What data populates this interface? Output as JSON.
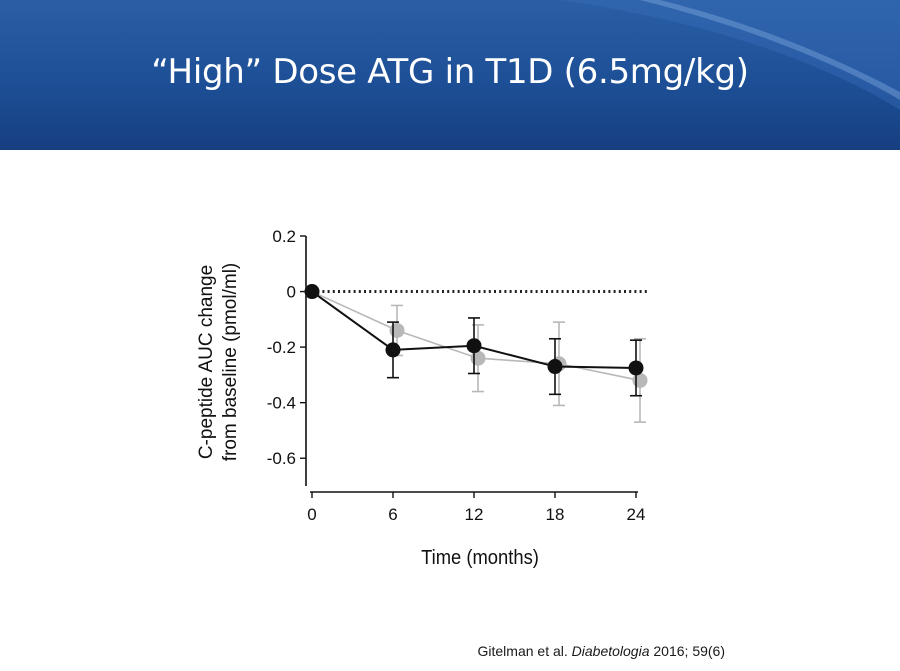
{
  "slide": {
    "title": "“High” Dose ATG in T1D (6.5mg/kg)",
    "citation": {
      "authors": "Gitelman et al.",
      "journal": "Diabetologia",
      "details": "2016; 59(6)"
    }
  },
  "colors": {
    "header": "#1d4f96",
    "series_black": "#111111",
    "series_grey": "#b8b8b8"
  },
  "chart_data": {
    "type": "line",
    "title": "",
    "xlabel": "Time (months)",
    "ylabel_line1": "C-peptide AUC change",
    "ylabel_line2": "from baseline (pmol/ml)",
    "xlim": [
      0,
      24
    ],
    "ylim": [
      -0.7,
      0.2
    ],
    "xticks": [
      0,
      6,
      12,
      18,
      24
    ],
    "xtick_labels": [
      "0",
      "6",
      "12",
      "18",
      "24"
    ],
    "yticks": [
      0.2,
      0,
      -0.2,
      -0.4,
      -0.6
    ],
    "ytick_labels": [
      "0.2",
      "0",
      "-0.2",
      "-0.4",
      "-0.6"
    ],
    "reference_line": {
      "y": 0,
      "style": "dotted"
    },
    "series": [
      {
        "name": "grey",
        "x": [
          0,
          6,
          12,
          18,
          24
        ],
        "values": [
          0,
          -0.14,
          -0.24,
          -0.26,
          -0.32
        ],
        "err_upper": [
          0,
          0.09,
          0.12,
          0.15,
          0.15
        ],
        "err_lower": [
          0,
          0.09,
          0.12,
          0.15,
          0.15
        ]
      },
      {
        "name": "black",
        "x": [
          0,
          6,
          12,
          18,
          24
        ],
        "values": [
          0,
          -0.21,
          -0.195,
          -0.27,
          -0.275
        ],
        "err_upper": [
          0,
          0.1,
          0.1,
          0.1,
          0.1
        ],
        "err_lower": [
          0,
          0.1,
          0.1,
          0.1,
          0.1
        ]
      }
    ]
  }
}
